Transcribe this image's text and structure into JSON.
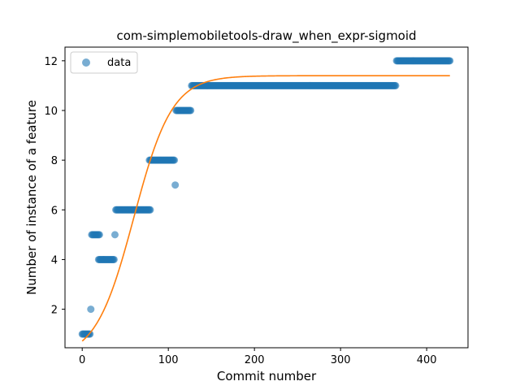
{
  "chart_data": {
    "type": "scatter",
    "title": "com-simplemobiletools-draw_when_expr-sigmoid",
    "xlabel": "Commit number",
    "ylabel": "Number of instance of a feature",
    "xlim": [
      -20,
      448
    ],
    "ylim": [
      0.45,
      12.55
    ],
    "xticks": [
      0,
      100,
      200,
      300,
      400
    ],
    "yticks": [
      2,
      4,
      6,
      8,
      10,
      12
    ],
    "legend": {
      "position": "top-left",
      "entries": [
        "data"
      ]
    },
    "grid": false,
    "colors": {
      "data": "#1f77b4",
      "fit": "#ff7f0e"
    },
    "series": [
      {
        "name": "data",
        "kind": "scatter",
        "runs": [
          {
            "x_start": 0,
            "x_end": 9,
            "y": 1
          },
          {
            "x_start": 10,
            "x_end": 10,
            "y": 2
          },
          {
            "x_start": 11,
            "x_end": 20,
            "y": 5
          },
          {
            "x_start": 19,
            "x_end": 37,
            "y": 4
          },
          {
            "x_start": 38,
            "x_end": 38,
            "y": 5
          },
          {
            "x_start": 39,
            "x_end": 79,
            "y": 6
          },
          {
            "x_start": 78,
            "x_end": 107,
            "y": 8
          },
          {
            "x_start": 108,
            "x_end": 108,
            "y": 7
          },
          {
            "x_start": 109,
            "x_end": 126,
            "y": 10
          },
          {
            "x_start": 127,
            "x_end": 364,
            "y": 11
          },
          {
            "x_start": 365,
            "x_end": 427,
            "y": 12
          }
        ]
      },
      {
        "kind": "line",
        "function": "sigmoid",
        "params": {
          "L": 11.4,
          "k": 0.045,
          "x0": 60,
          "b": 0
        },
        "x_range": [
          0,
          427
        ]
      }
    ]
  }
}
